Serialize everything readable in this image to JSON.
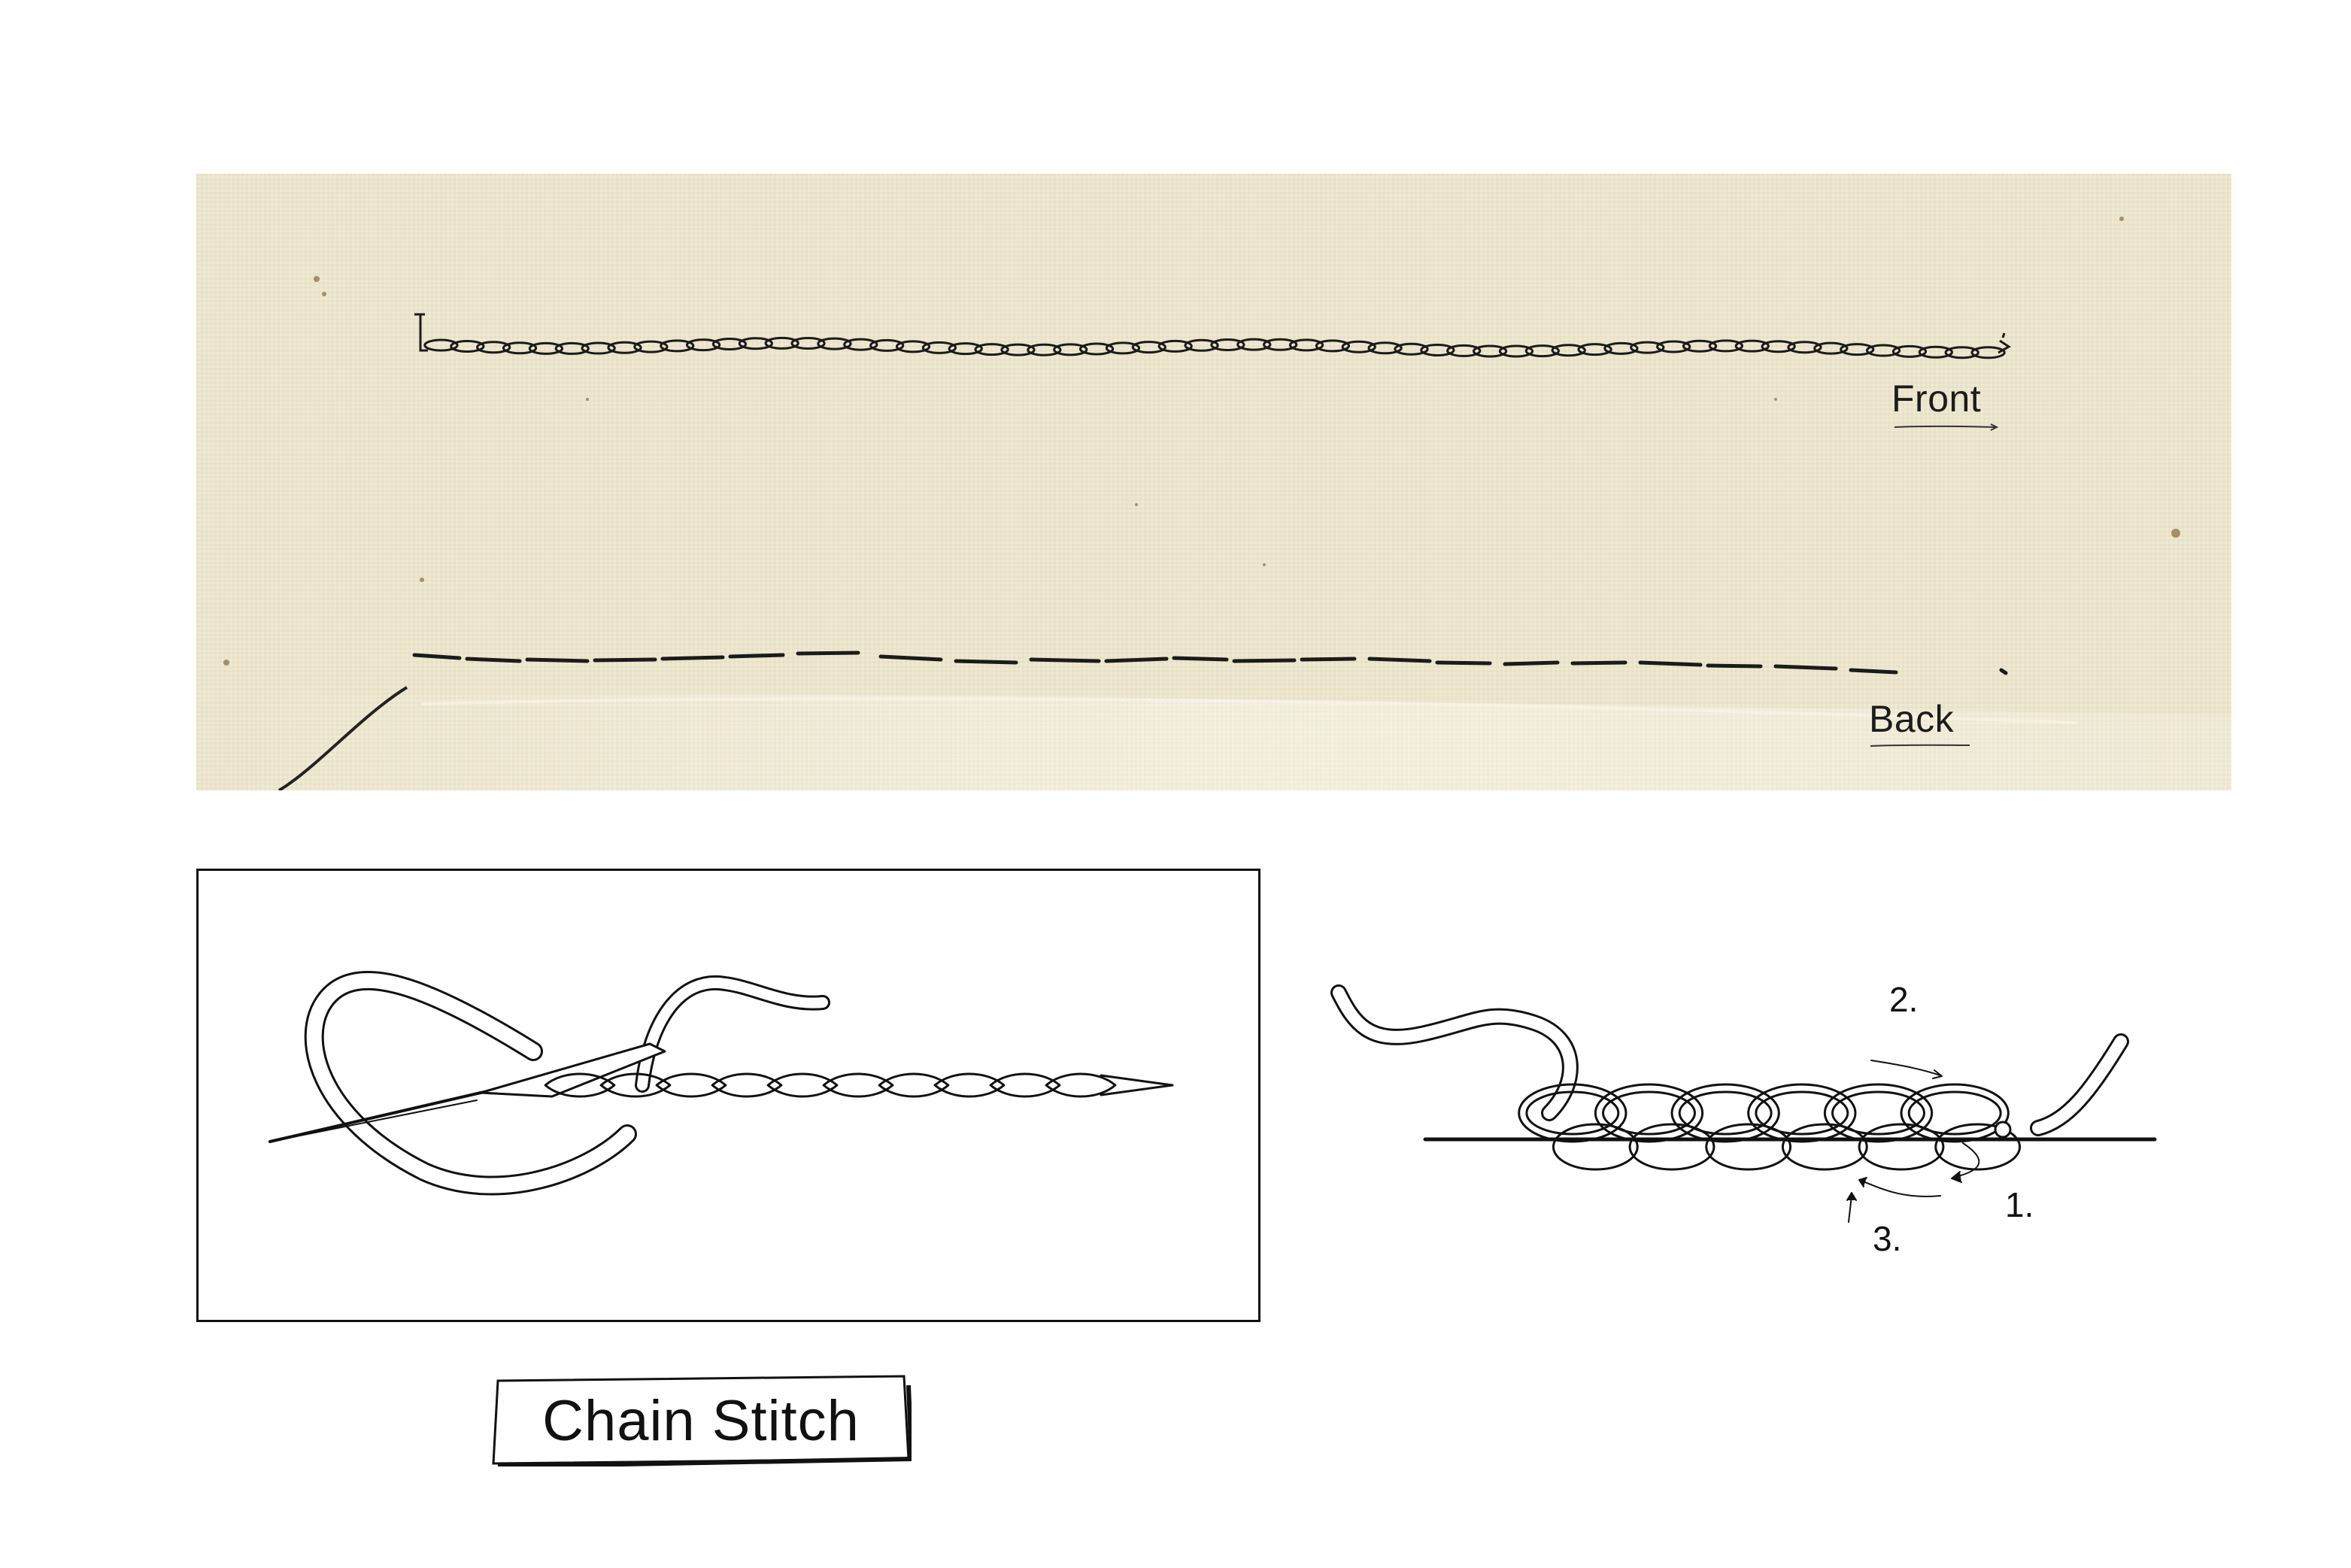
{
  "title": "Chain Stitch",
  "photo": {
    "front_label": "Front",
    "back_label": "Back",
    "fabric_color": "#ede6cf",
    "thread_color": "#1b1b1b"
  },
  "steps": {
    "step1": "1.",
    "step2": "2.",
    "step3": "3."
  }
}
